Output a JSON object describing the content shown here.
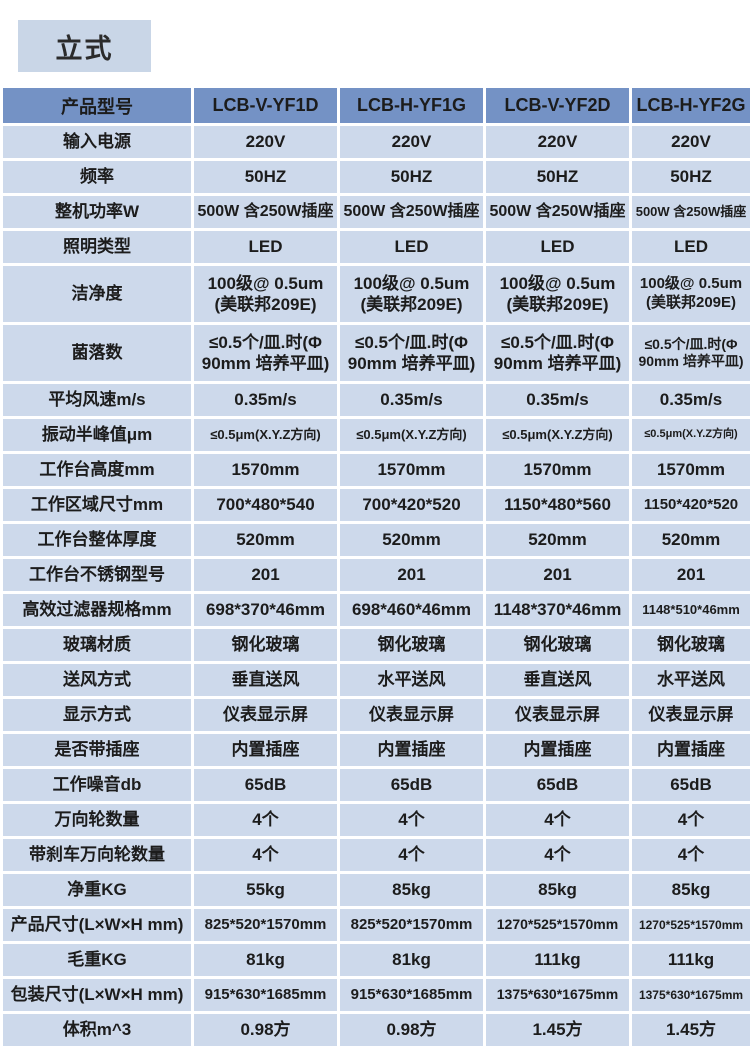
{
  "page": {
    "category_label": "立式"
  },
  "colors": {
    "header_bg": "#7492c5",
    "row_bg": "#cdd9eb",
    "label_box_bg": "#c9d6e7",
    "border": "#ffffff",
    "text": "#1c1c1c"
  },
  "table": {
    "header": [
      "产品型号",
      "LCB-V-YF1D",
      "LCB-H-YF1G",
      "LCB-V-YF2D",
      "LCB-H-YF2G"
    ],
    "rows": [
      {
        "label": "输入电源",
        "values": [
          "220V",
          "220V",
          "220V",
          "220V"
        ]
      },
      {
        "label": "频率",
        "values": [
          "50HZ",
          "50HZ",
          "50HZ",
          "50HZ"
        ]
      },
      {
        "label": "整机功率W",
        "values": [
          "500W 含250W插座",
          "500W 含250W插座",
          "500W 含250W插座",
          "500W 含250W插座"
        ]
      },
      {
        "label": "照明类型",
        "values": [
          "LED",
          "LED",
          "LED",
          "LED"
        ]
      },
      {
        "label": "洁净度",
        "values": [
          "100级@ 0.5um\n(美联邦209E)",
          "100级@ 0.5um\n(美联邦209E)",
          "100级@ 0.5um\n(美联邦209E)",
          "100级@ 0.5um\n(美联邦209E)"
        ]
      },
      {
        "label": "菌落数",
        "values": [
          "≤0.5个/皿.时(Φ\n90mm 培养平皿)",
          "≤0.5个/皿.时(Φ\n90mm 培养平皿)",
          "≤0.5个/皿.时(Φ\n90mm 培养平皿)",
          "≤0.5个/皿.时(Φ\n90mm 培养平皿)"
        ]
      },
      {
        "label": "平均风速m/s",
        "values": [
          "0.35m/s",
          "0.35m/s",
          "0.35m/s",
          "0.35m/s"
        ]
      },
      {
        "label": "振动半峰值μm",
        "values": [
          "≤0.5μm(X.Y.Z方向)",
          "≤0.5μm(X.Y.Z方向)",
          "≤0.5μm(X.Y.Z方向)",
          "≤0.5μm(X.Y.Z方向)"
        ]
      },
      {
        "label": "工作台高度mm",
        "values": [
          "1570mm",
          "1570mm",
          "1570mm",
          "1570mm"
        ]
      },
      {
        "label": "工作区域尺寸mm",
        "values": [
          "700*480*540",
          "700*420*520",
          "1150*480*560",
          "1150*420*520"
        ]
      },
      {
        "label": "工作台整体厚度",
        "values": [
          "520mm",
          "520mm",
          "520mm",
          "520mm"
        ]
      },
      {
        "label": "工作台不锈钢型号",
        "values": [
          "201",
          "201",
          "201",
          "201"
        ]
      },
      {
        "label": "高效过滤器规格mm",
        "values": [
          "698*370*46mm",
          "698*460*46mm",
          "1148*370*46mm",
          "1148*510*46mm"
        ]
      },
      {
        "label": "玻璃材质",
        "values": [
          "钢化玻璃",
          "钢化玻璃",
          "钢化玻璃",
          "钢化玻璃"
        ]
      },
      {
        "label": "送风方式",
        "values": [
          "垂直送风",
          "水平送风",
          "垂直送风",
          "水平送风"
        ]
      },
      {
        "label": "显示方式",
        "values": [
          "仪表显示屏",
          "仪表显示屏",
          "仪表显示屏",
          "仪表显示屏"
        ]
      },
      {
        "label": "是否带插座",
        "values": [
          "内置插座",
          "内置插座",
          "内置插座",
          "内置插座"
        ]
      },
      {
        "label": "工作噪音db",
        "values": [
          "65dB",
          "65dB",
          "65dB",
          "65dB"
        ]
      },
      {
        "label": "万向轮数量",
        "values": [
          "4个",
          "4个",
          "4个",
          "4个"
        ]
      },
      {
        "label": "带刹车万向轮数量",
        "values": [
          "4个",
          "4个",
          "4个",
          "4个"
        ]
      },
      {
        "label": "净重KG",
        "values": [
          "55kg",
          "85kg",
          "85kg",
          "85kg"
        ]
      },
      {
        "label": "产品尺寸(L×W×H mm)",
        "values": [
          "825*520*1570mm",
          "825*520*1570mm",
          "1270*525*1570mm",
          "1270*525*1570mm"
        ]
      },
      {
        "label": "毛重KG",
        "values": [
          "81kg",
          "81kg",
          "111kg",
          "111kg"
        ]
      },
      {
        "label": "包装尺寸(L×W×H mm)",
        "values": [
          "915*630*1685mm",
          "915*630*1685mm",
          "1375*630*1675mm",
          "1375*630*1675mm"
        ]
      },
      {
        "label": "体积m^3",
        "values": [
          "0.98方",
          "0.98方",
          "1.45方",
          "1.45方"
        ]
      }
    ]
  }
}
